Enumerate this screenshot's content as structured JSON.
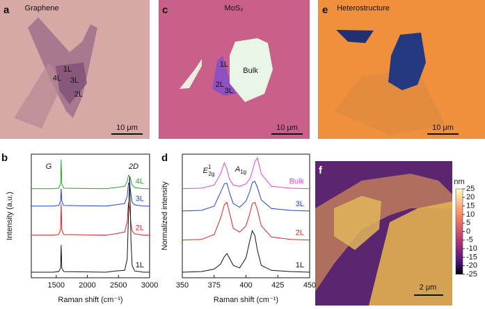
{
  "panels": {
    "a": {
      "letter": "a",
      "title": "Graphene",
      "labels": [
        "1L",
        "4L",
        "3L",
        "2L"
      ],
      "scale_bar": "10 μm"
    },
    "c": {
      "letter": "c",
      "title": "MoS₂",
      "labels": [
        "1L",
        "Bulk",
        "2L",
        "3L"
      ],
      "scale_bar": "10 μm"
    },
    "e": {
      "letter": "e",
      "title": "Heterostructure",
      "scale_bar": "10 μm"
    },
    "f": {
      "letter": "f",
      "scale_bar": "2 μm",
      "colorbar": {
        "label": "nm",
        "lim": [
          -25,
          25
        ],
        "ticks": [
          25,
          20,
          15,
          10,
          5,
          0,
          -5,
          -10,
          -15,
          -20,
          -25
        ]
      }
    }
  },
  "chart_data": [
    {
      "type": "line",
      "letter": "b",
      "xlabel": "Raman shift (cm⁻¹)",
      "ylabel": "Intensity (a.u.)",
      "xlim": [
        1100,
        3000
      ],
      "xticks": [
        1500,
        2000,
        2500,
        3000
      ],
      "ylim": [
        0,
        10
      ],
      "annotations": [
        {
          "text": "G"
        },
        {
          "text": "2D"
        }
      ],
      "x": [
        1100,
        1450,
        1540,
        1570,
        1580,
        1590,
        1620,
        2300,
        2450,
        2600,
        2640,
        2660,
        2680,
        2700,
        2720,
        2760,
        2900,
        3000
      ],
      "series": [
        {
          "name": "4L",
          "color": "#2ca02c",
          "values": [
            7.2,
            7.2,
            7.25,
            7.6,
            9.55,
            7.6,
            7.25,
            7.2,
            7.3,
            7.4,
            7.8,
            8.3,
            8.2,
            7.9,
            7.5,
            7.3,
            7.2,
            7.2
          ]
        },
        {
          "name": "3L",
          "color": "#1f3fd8",
          "values": [
            5.8,
            5.8,
            5.85,
            6.2,
            7.2,
            6.2,
            5.85,
            5.8,
            5.9,
            6.0,
            6.6,
            7.65,
            7.5,
            6.8,
            6.1,
            5.9,
            5.8,
            5.8
          ]
        },
        {
          "name": "2L",
          "color": "#e02020",
          "values": [
            3.45,
            3.45,
            3.5,
            3.9,
            6.0,
            3.9,
            3.5,
            3.45,
            3.55,
            3.7,
            4.5,
            6.1,
            5.6,
            4.4,
            3.8,
            3.55,
            3.45,
            3.45
          ]
        },
        {
          "name": "1L",
          "color": "#111111",
          "values": [
            0.45,
            0.45,
            0.5,
            0.8,
            2.65,
            0.8,
            0.5,
            0.45,
            0.55,
            0.6,
            1.5,
            5.0,
            8.2,
            3.0,
            1.0,
            0.55,
            0.45,
            0.45
          ]
        }
      ]
    },
    {
      "type": "line",
      "letter": "d",
      "xlabel": "Raman shift (cm⁻¹)",
      "ylabel": "Normalized intensity",
      "xlim": [
        350,
        450
      ],
      "xticks": [
        350,
        375,
        400,
        425,
        450
      ],
      "ylim": [
        0,
        10
      ],
      "annotations": [
        {
          "text": "E",
          "sup": "1",
          "sub": "2g"
        },
        {
          "text": "A",
          "sub": "1g"
        }
      ],
      "x": [
        350,
        365,
        375,
        380,
        383,
        385,
        387,
        390,
        395,
        400,
        403,
        405,
        407,
        409,
        412,
        420,
        435,
        450
      ],
      "series": [
        {
          "name": "Bulk",
          "color": "#e040e0",
          "values": [
            7.2,
            7.25,
            7.5,
            8.4,
            9.3,
            8.8,
            8.0,
            7.5,
            7.4,
            7.6,
            8.0,
            8.6,
            9.4,
            9.7,
            8.4,
            7.4,
            7.25,
            7.2
          ]
        },
        {
          "name": "3L",
          "color": "#1f3fd8",
          "values": [
            5.4,
            5.45,
            5.8,
            6.9,
            7.6,
            7.65,
            6.9,
            6.0,
            5.7,
            6.2,
            7.0,
            7.7,
            7.8,
            7.3,
            6.3,
            5.6,
            5.45,
            5.4
          ]
        },
        {
          "name": "2L",
          "color": "#e02020",
          "values": [
            3.05,
            3.1,
            3.5,
            4.8,
            5.9,
            6.1,
            5.3,
            4.0,
            3.7,
            4.2,
            5.2,
            6.0,
            6.1,
            5.5,
            4.2,
            3.3,
            3.1,
            3.05
          ]
        },
        {
          "name": "1L",
          "color": "#111111",
          "values": [
            0.45,
            0.5,
            0.7,
            1.1,
            1.7,
            1.95,
            1.6,
            1.0,
            0.8,
            1.6,
            3.0,
            3.8,
            3.4,
            2.2,
            1.0,
            0.6,
            0.5,
            0.45
          ]
        }
      ]
    }
  ]
}
